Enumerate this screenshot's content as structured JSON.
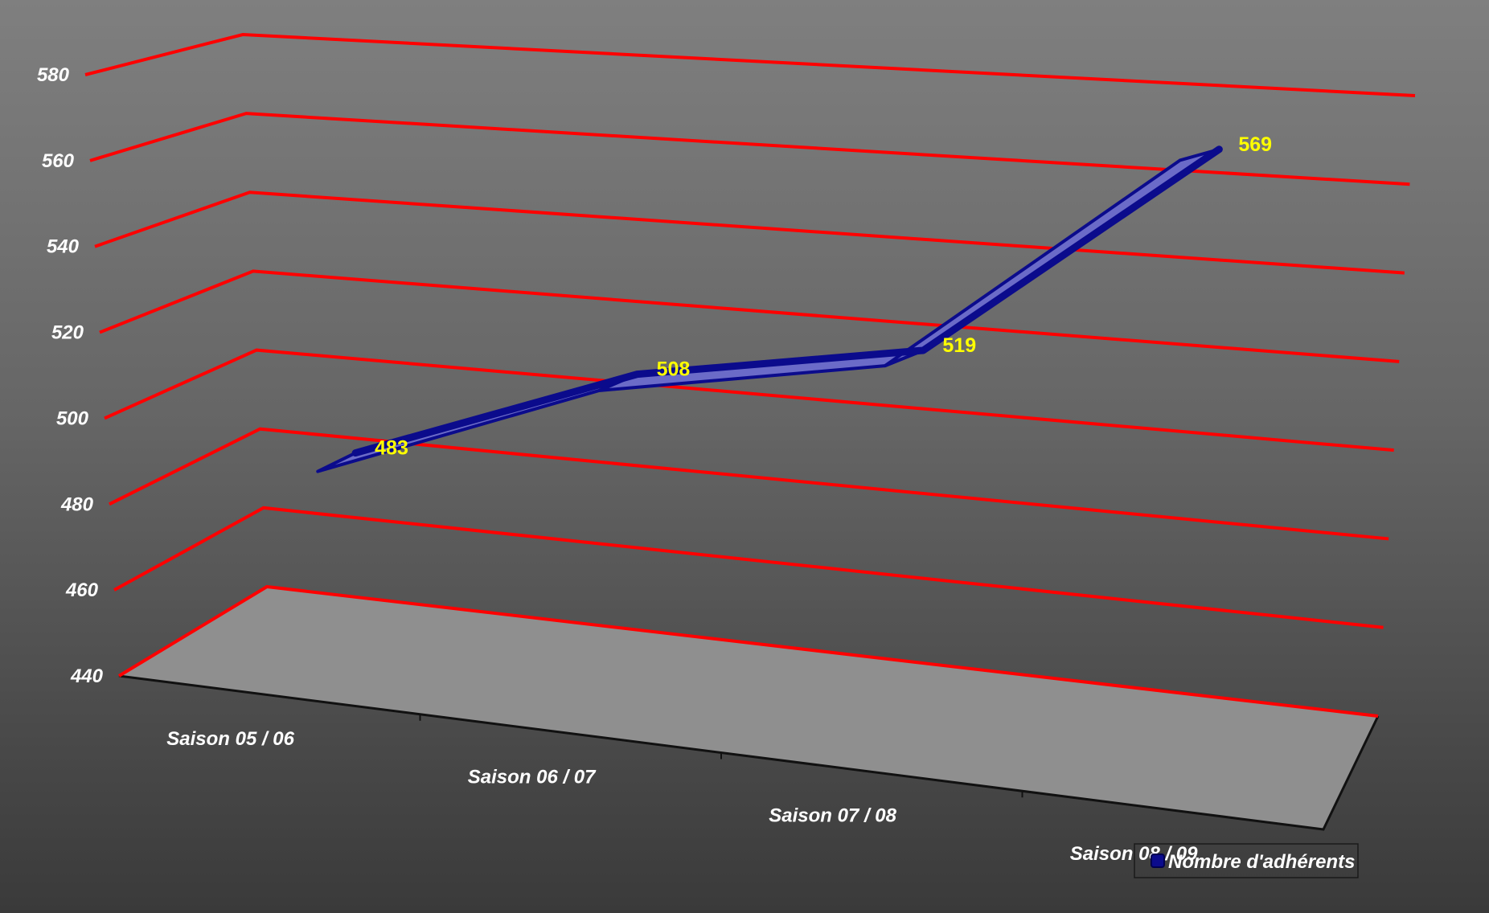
{
  "chart_data": {
    "type": "line",
    "style": "3d",
    "categories": [
      "Saison 05 / 06",
      "Saison 06 / 07",
      "Saison 07 / 08",
      "Saison 08 / 09"
    ],
    "series": [
      {
        "name": "Nombre d'adhérents",
        "values": [
          483,
          508,
          519,
          569
        ]
      }
    ],
    "ylim": [
      440,
      580
    ],
    "yticks": [
      440,
      460,
      480,
      500,
      520,
      540,
      560,
      580
    ],
    "grid": true,
    "legend": "bottom-right",
    "colors": {
      "gridline": "#ff0000",
      "series": "#0b0b8c",
      "series_face": "#6b6bc8",
      "data_label": "#ffff00",
      "floor": "#8f8f8f"
    }
  }
}
